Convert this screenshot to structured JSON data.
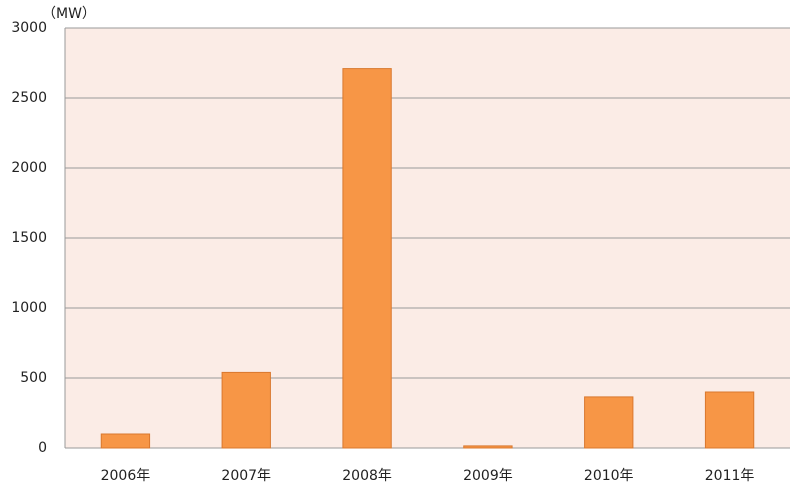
{
  "chart_data": {
    "type": "bar",
    "y_label": "（MW）",
    "categories": [
      "2006年",
      "2007年",
      "2008年",
      "2009年",
      "2010年",
      "2011年"
    ],
    "values": [
      100,
      540,
      2710,
      15,
      365,
      400
    ],
    "color": "#f79646",
    "ylim": [
      0,
      3000
    ],
    "yticks": [
      0,
      500,
      1000,
      1500,
      2000,
      2500,
      3000
    ],
    "grid": true
  }
}
